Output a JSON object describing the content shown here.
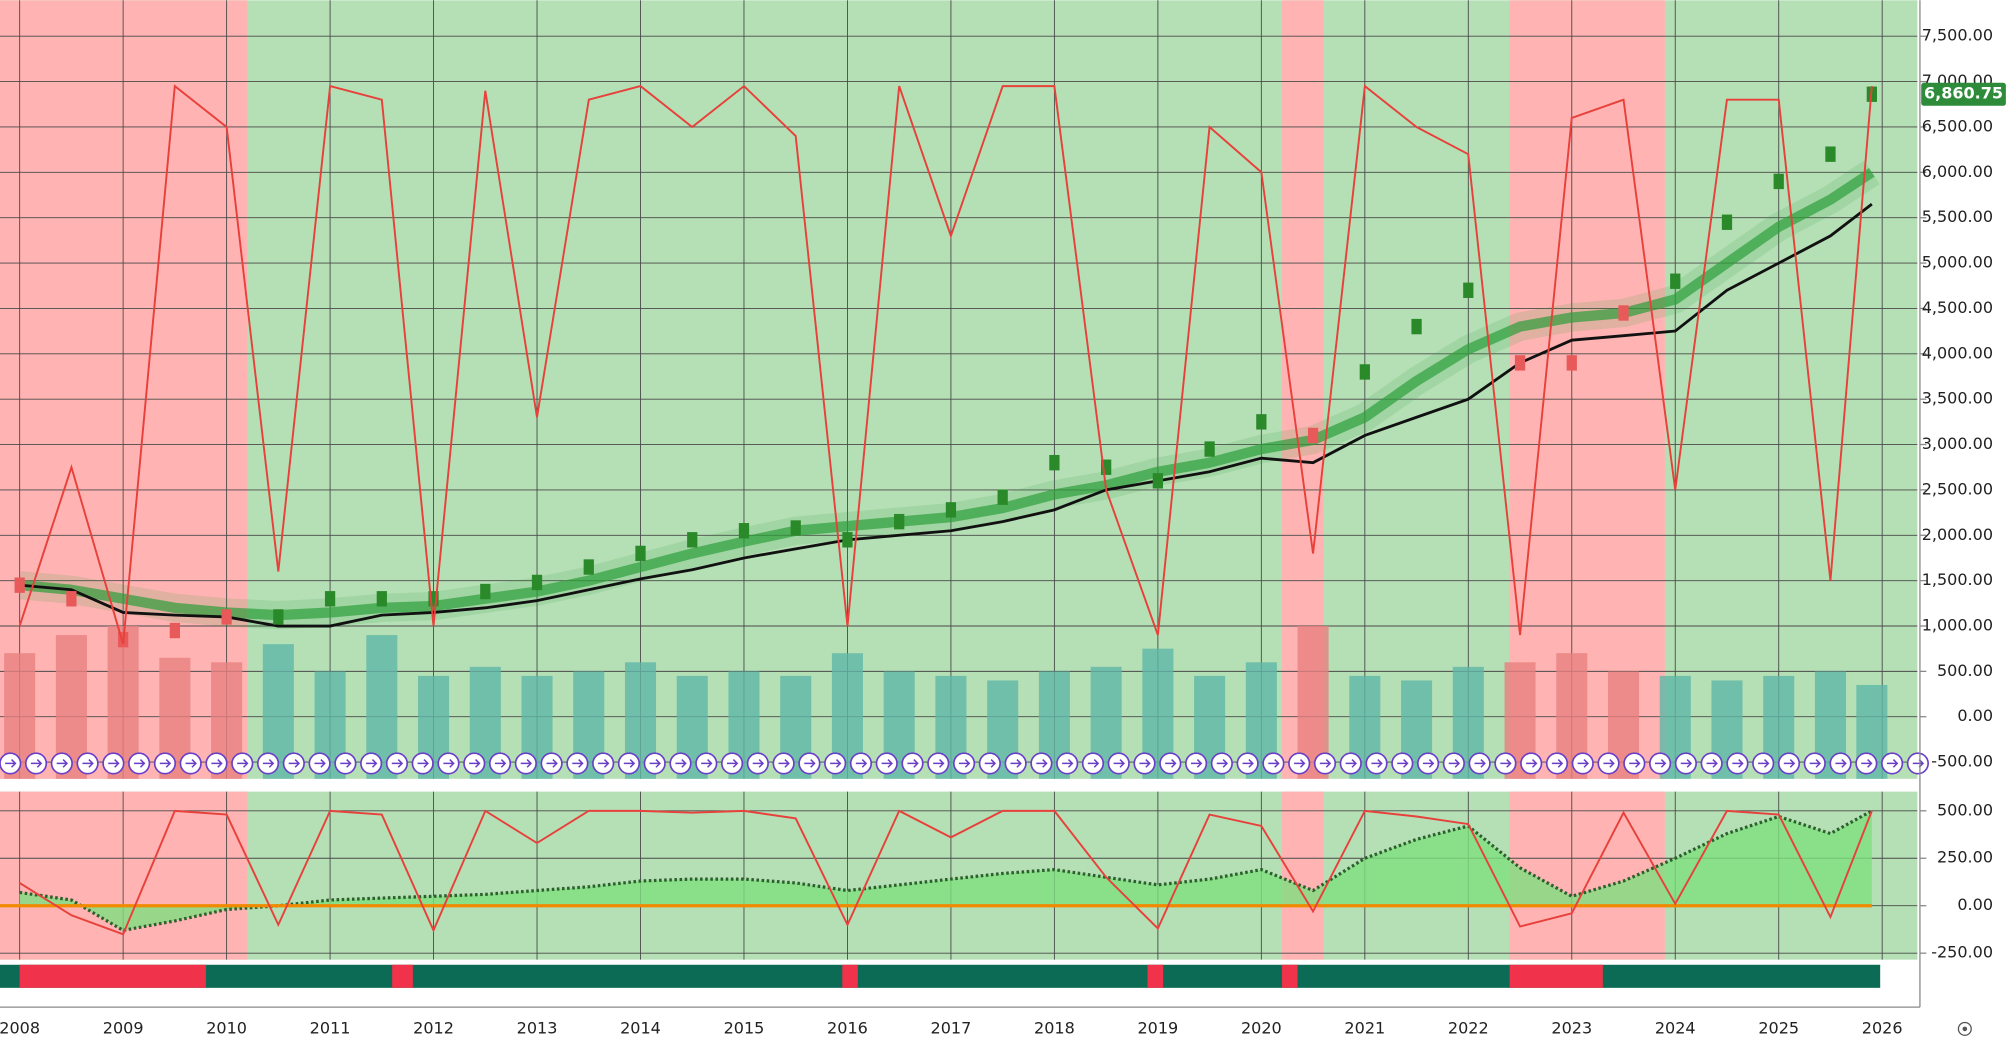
{
  "chart_data": [
    {
      "type": "line",
      "xlim": [
        2007.81,
        2026.34
      ],
      "xticks": [
        2008,
        2009,
        2010,
        2011,
        2012,
        2013,
        2014,
        2015,
        2016,
        2017,
        2018,
        2019,
        2020,
        2021,
        2022,
        2023,
        2024,
        2025,
        2026
      ],
      "ylim": [
        -684,
        7896
      ],
      "yticks": [
        {
          "value": -500,
          "label": "-500.00"
        },
        {
          "value": 0,
          "label": "0.00"
        },
        {
          "value": 500,
          "label": "500.00"
        },
        {
          "value": 1000,
          "label": "1,000.00"
        },
        {
          "value": 1500,
          "label": "1,500.00"
        },
        {
          "value": 2000,
          "label": "2,000.00"
        },
        {
          "value": 2500,
          "label": "2,500.00"
        },
        {
          "value": 3000,
          "label": "3,000.00"
        },
        {
          "value": 3500,
          "label": "3,500.00"
        },
        {
          "value": 4000,
          "label": "4,000.00"
        },
        {
          "value": 4500,
          "label": "4,500.00"
        },
        {
          "value": 5000,
          "label": "5,000.00"
        },
        {
          "value": 5500,
          "label": "5,500.00"
        },
        {
          "value": 6000,
          "label": "6,000.00"
        },
        {
          "value": 6500,
          "label": "6,500.00"
        },
        {
          "value": 7000,
          "label": "7,000.00"
        },
        {
          "value": 7500,
          "label": "7,500.00"
        }
      ],
      "grid": true,
      "last_price": {
        "value": 6860.75,
        "label": "6,860.75"
      },
      "regions": [
        [
          2007.81,
          2010.2
        ],
        [
          2020.2,
          2020.6
        ],
        [
          2022.4,
          2023.9
        ]
      ],
      "strip": [
        [
          2008.0,
          2009.8
        ],
        [
          2011.6,
          2011.8
        ],
        [
          2015.95,
          2016.1
        ],
        [
          2018.9,
          2019.05
        ],
        [
          2020.2,
          2020.35
        ],
        [
          2022.4,
          2023.3
        ]
      ],
      "x": [
        2008,
        2008.5,
        2009,
        2009.5,
        2010,
        2010.5,
        2011,
        2011.5,
        2012,
        2012.5,
        2013,
        2013.5,
        2014,
        2014.5,
        2015,
        2015.5,
        2016,
        2016.5,
        2017,
        2017.5,
        2018,
        2018.5,
        2019,
        2019.5,
        2020,
        2020.5,
        2021,
        2021.5,
        2022,
        2022.5,
        2023,
        2023.5,
        2024,
        2024.5,
        2025,
        2025.5,
        2025.9
      ],
      "series": [
        {
          "type": "bar",
          "color": "#5fb7a8",
          "values": [
            700,
            900,
            1000,
            650,
            600,
            800,
            500,
            900,
            450,
            550,
            450,
            500,
            600,
            450,
            500,
            450,
            700,
            500,
            450,
            400,
            500,
            550,
            750,
            450,
            600,
            1000,
            450,
            400,
            550,
            600,
            700,
            500,
            450,
            400,
            450,
            500,
            350
          ]
        },
        {
          "type": "band",
          "color": "#2e9e3a",
          "values": [
            1450,
            1400,
            1300,
            1200,
            1150,
            1120,
            1150,
            1200,
            1220,
            1300,
            1380,
            1500,
            1650,
            1800,
            1930,
            2050,
            2100,
            2150,
            2200,
            2300,
            2450,
            2550,
            2700,
            2800,
            2950,
            3050,
            3300,
            3700,
            4050,
            4300,
            4400,
            4450,
            4600,
            5000,
            5400,
            5700,
            6000
          ]
        },
        {
          "type": "line",
          "color": "#111111",
          "values": [
            1450,
            1400,
            1150,
            1120,
            1100,
            1000,
            1000,
            1120,
            1150,
            1200,
            1280,
            1400,
            1520,
            1620,
            1750,
            1850,
            1950,
            2000,
            2050,
            2150,
            2280,
            2500,
            2600,
            2700,
            2850,
            2800,
            3100,
            3300,
            3500,
            3900,
            4150,
            4200,
            4250,
            4700,
            5000,
            5300,
            5650
          ]
        },
        {
          "type": "markers",
          "color": "#2a8a2a",
          "values": [
            1450,
            1300,
            850,
            950,
            1100,
            1100,
            1300,
            1300,
            1300,
            1380,
            1480,
            1650,
            1800,
            1950,
            2050,
            2080,
            1950,
            2150,
            2280,
            2420,
            2800,
            2750,
            2600,
            2950,
            3250,
            3100,
            3800,
            4300,
            4700,
            3900,
            3900,
            4450,
            4800,
            5450,
            5900,
            6200,
            6860.75
          ]
        },
        {
          "type": "line",
          "color": "#e8403a",
          "values": [
            1000,
            2750,
            800,
            6950,
            6500,
            1600,
            6950,
            6800,
            1000,
            6900,
            3300,
            6800,
            6950,
            6500,
            6950,
            6400,
            1000,
            6950,
            5300,
            6950,
            6950,
            2500,
            900,
            6500,
            6000,
            1800,
            6950,
            6500,
            6200,
            900,
            6600,
            6800,
            2500,
            6800,
            6800,
            1500,
            6950
          ]
        }
      ]
    },
    {
      "type": "line",
      "xlim": [
        2007.81,
        2026.34
      ],
      "ylim": [
        -284,
        601
      ],
      "yticks": [
        {
          "value": -250,
          "label": "-250.00"
        },
        {
          "value": 0,
          "label": "0.00"
        },
        {
          "value": 250,
          "label": "250.00"
        },
        {
          "value": 500,
          "label": "500.00"
        }
      ],
      "grid": true,
      "x": [
        2008,
        2008.5,
        2009,
        2009.5,
        2010,
        2010.5,
        2011,
        2011.5,
        2012,
        2012.5,
        2013,
        2013.5,
        2014,
        2014.5,
        2015,
        2015.5,
        2016,
        2016.5,
        2017,
        2017.5,
        2018,
        2018.5,
        2019,
        2019.5,
        2020,
        2020.5,
        2021,
        2021.5,
        2022,
        2022.5,
        2023,
        2023.5,
        2024,
        2024.5,
        2025,
        2025.5,
        2025.9
      ],
      "series": [
        {
          "type": "area",
          "color": "#7ee07e",
          "values": [
            70,
            30,
            -130,
            -80,
            -20,
            0,
            30,
            40,
            50,
            60,
            80,
            100,
            130,
            140,
            140,
            120,
            80,
            110,
            140,
            170,
            190,
            150,
            110,
            140,
            190,
            80,
            250,
            350,
            420,
            200,
            50,
            130,
            250,
            380,
            470,
            380,
            500
          ]
        },
        {
          "type": "line",
          "color": "#e8403a",
          "values": [
            120,
            -50,
            -150,
            500,
            480,
            -100,
            500,
            480,
            -130,
            500,
            330,
            500,
            500,
            490,
            500,
            460,
            -100,
            500,
            360,
            500,
            500,
            150,
            -120,
            480,
            420,
            -30,
            500,
            470,
            430,
            -110,
            -40,
            490,
            10,
            500,
            480,
            -60,
            500
          ]
        }
      ]
    }
  ]
}
